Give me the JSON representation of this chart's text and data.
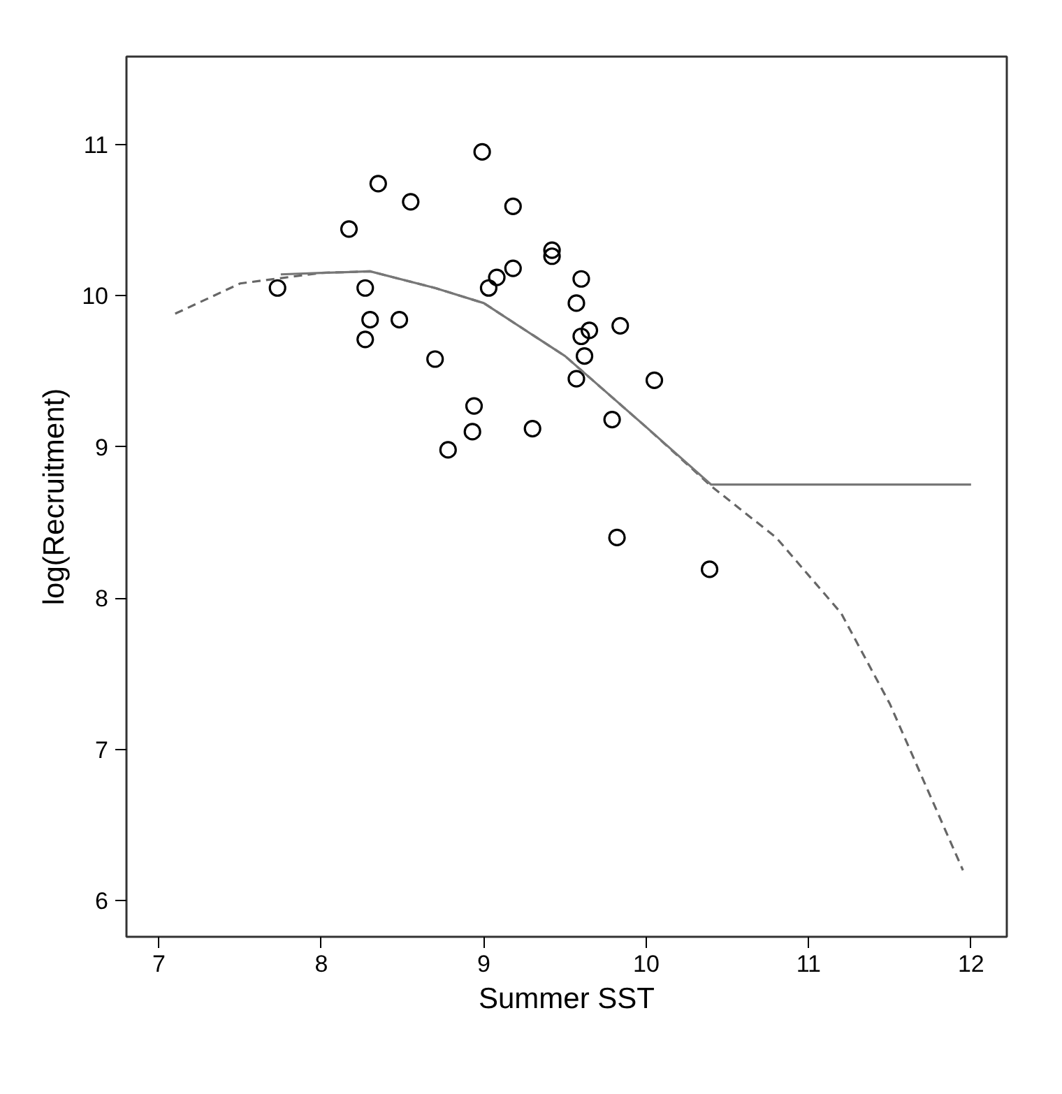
{
  "chart_data": {
    "type": "scatter",
    "xlabel": "Summer SST",
    "ylabel": "log(Recruitment)",
    "xlim": [
      6.8,
      12.22
    ],
    "ylim": [
      5.76,
      11.58
    ],
    "xticks": [
      7,
      8,
      9,
      10,
      11,
      12
    ],
    "yticks": [
      6,
      7,
      8,
      9,
      10,
      11
    ],
    "series": [
      {
        "marker": "circle",
        "color": "#000000",
        "x": [
          7.73,
          8.17,
          8.35,
          8.55,
          8.27,
          8.3,
          8.27,
          8.48,
          8.7,
          8.78,
          8.93,
          8.94,
          8.99,
          9.03,
          9.08,
          9.18,
          9.18,
          9.3,
          9.42,
          9.42,
          9.57,
          9.6,
          9.6,
          9.65,
          9.62,
          9.57,
          9.84,
          9.79,
          9.82,
          10.05,
          10.39
        ],
        "values": [
          10.05,
          10.44,
          10.74,
          10.62,
          10.05,
          9.84,
          9.71,
          9.84,
          9.58,
          8.98,
          9.1,
          9.27,
          10.95,
          10.05,
          10.12,
          10.18,
          10.59,
          9.12,
          10.3,
          10.26,
          9.95,
          10.11,
          9.73,
          9.77,
          9.6,
          9.45,
          9.8,
          9.18,
          8.4,
          9.44,
          8.19
        ]
      },
      {
        "type": "line",
        "line_style": "dashed",
        "color": "#666666",
        "x": [
          7.1,
          7.5,
          8.0,
          8.3,
          8.7,
          9.0,
          9.5,
          10.0,
          10.4,
          10.8,
          11.2,
          11.5,
          11.95
        ],
        "values": [
          9.88,
          10.08,
          10.15,
          10.16,
          10.05,
          9.95,
          9.6,
          9.13,
          8.74,
          8.4,
          7.9,
          7.3,
          6.2
        ]
      },
      {
        "type": "line",
        "line_style": "solid",
        "color": "#777777",
        "x": [
          7.75,
          8.0,
          8.3,
          8.7,
          9.0,
          9.5,
          10.0,
          10.4,
          12.0
        ],
        "values": [
          10.14,
          10.15,
          10.16,
          10.05,
          9.95,
          9.6,
          9.13,
          8.75,
          8.75
        ]
      }
    ]
  }
}
